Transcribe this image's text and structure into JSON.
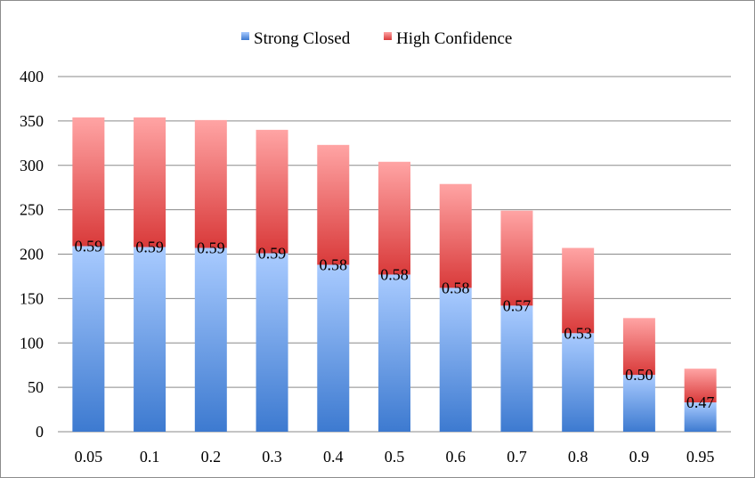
{
  "chart_data": {
    "type": "bar",
    "stacked": true,
    "title": "",
    "xlabel": "",
    "ylabel": "",
    "ylim": [
      0,
      400
    ],
    "yticks": [
      0,
      50,
      100,
      150,
      200,
      250,
      300,
      350,
      400
    ],
    "grid": true,
    "legend_position": "top-center",
    "categories": [
      "0.05",
      "0.1",
      "0.2",
      "0.3",
      "0.4",
      "0.5",
      "0.6",
      "0.7",
      "0.8",
      "0.9",
      "0.95"
    ],
    "series": [
      {
        "name": "Strong Closed",
        "color": "#4a86d8",
        "values": [
          209,
          208,
          207,
          201,
          188,
          177,
          162,
          142,
          111,
          64,
          33
        ]
      },
      {
        "name": "High Confidence",
        "color": "#e04646",
        "values": [
          145,
          146,
          144,
          139,
          135,
          127,
          117,
          107,
          96,
          64,
          38
        ]
      }
    ],
    "data_labels": [
      "0.59",
      "0.59",
      "0.59",
      "0.59",
      "0.58",
      "0.58",
      "0.58",
      "0.57",
      "0.53",
      "0.50",
      "0.47"
    ]
  }
}
